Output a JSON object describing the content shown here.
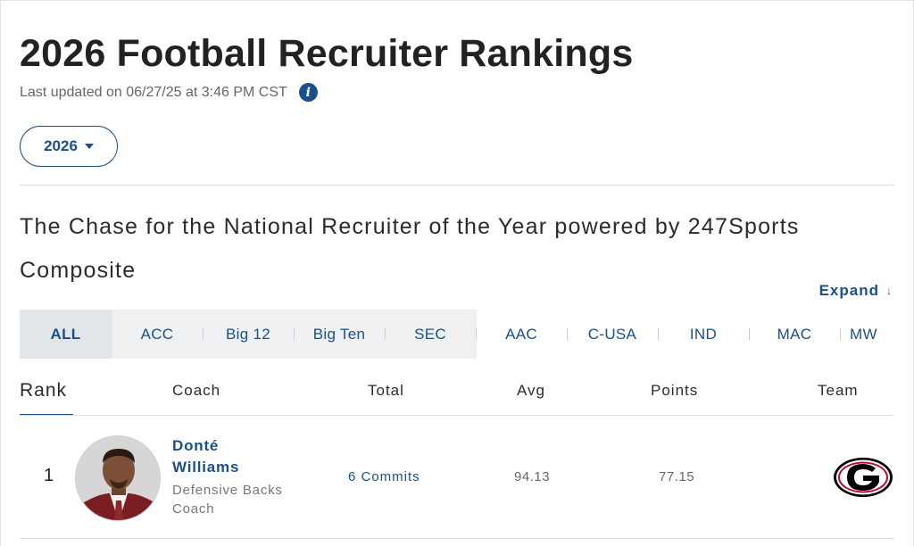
{
  "page": {
    "title": "2026 Football Recruiter Rankings",
    "last_updated": "Last updated on 06/27/25 at 3:46 PM CST",
    "info_icon": "info-icon"
  },
  "year_select": {
    "value": "2026"
  },
  "section": {
    "title": "The Chase for the National Recruiter of the Year powered by 247Sports Composite",
    "expand_label": "Expand",
    "expand_arrow": "↓"
  },
  "conferences": [
    "ALL",
    "ACC",
    "Big 12",
    "Big Ten",
    "SEC",
    "AAC",
    "C-USA",
    "IND",
    "MAC",
    "MW"
  ],
  "conference_active": "ALL",
  "table": {
    "headers": {
      "rank": "Rank",
      "coach": "Coach",
      "total": "Total",
      "avg": "Avg",
      "points": "Points",
      "team": "Team"
    },
    "rows": [
      {
        "rank": "1",
        "coach_name": "Donté Williams",
        "coach_role": "Defensive Backs Coach",
        "total": "6 Commits",
        "avg": "94.13",
        "points": "77.15",
        "team_logo": "georgia-g-logo"
      }
    ]
  },
  "colors": {
    "accent": "#1b4f8c",
    "team_red": "#ba0c2f",
    "team_black": "#000000"
  }
}
